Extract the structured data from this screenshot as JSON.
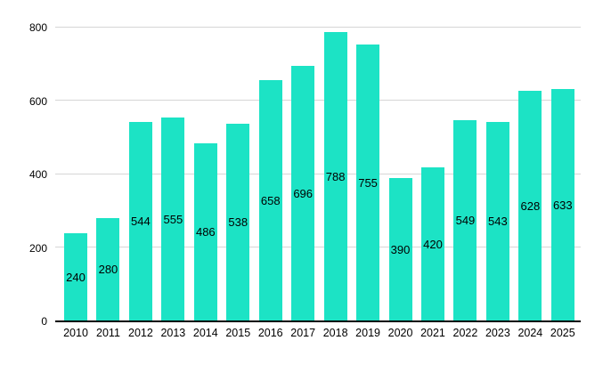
{
  "chart_data": {
    "type": "bar",
    "title": "",
    "xlabel": "",
    "ylabel": "",
    "categories": [
      "2010",
      "2011",
      "2012",
      "2013",
      "2014",
      "2015",
      "2016",
      "2017",
      "2018",
      "2019",
      "2020",
      "2021",
      "2022",
      "2023",
      "2024",
      "2025"
    ],
    "values": [
      240,
      280,
      544,
      555,
      486,
      538,
      658,
      696,
      788,
      755,
      390,
      420,
      549,
      543,
      628,
      633
    ],
    "ylim": [
      0,
      800
    ],
    "yticks": [
      0,
      200,
      400,
      600,
      800
    ],
    "grid": true,
    "legend": "none",
    "value_labels_position": "center-inside",
    "bar_color": "#1CE3C5",
    "grid_color": "#D6D6D6",
    "axis_color": "#000000",
    "text_color": "#000000",
    "background": "#FFFFFF"
  }
}
